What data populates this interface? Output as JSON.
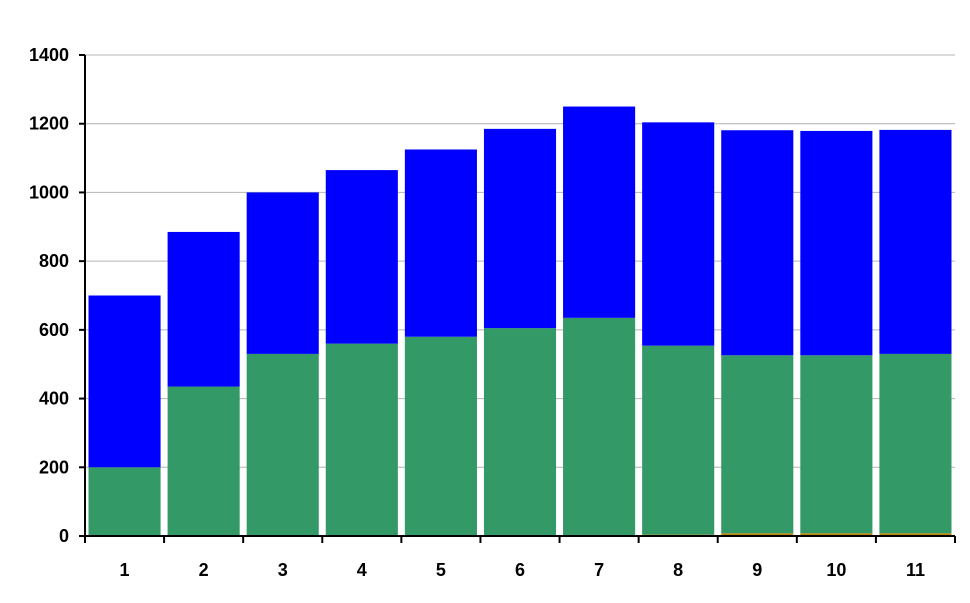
{
  "chart_data": {
    "type": "bar",
    "stacked": true,
    "title": "",
    "xlabel": "",
    "ylabel": "",
    "categories": [
      "1",
      "2",
      "3",
      "4",
      "5",
      "6",
      "7",
      "8",
      "9",
      "10",
      "11"
    ],
    "ylim": [
      0,
      1400
    ],
    "yticks": [
      0,
      200,
      400,
      600,
      800,
      1000,
      1200,
      1400
    ],
    "grid": true,
    "legend": "none",
    "series": [
      {
        "color": "#b8860b",
        "values": [
          0,
          0,
          0,
          0,
          0,
          3,
          3,
          4,
          8,
          8,
          8
        ]
      },
      {
        "color": "#339966",
        "values": [
          200,
          435,
          530,
          560,
          580,
          602,
          632,
          550,
          518,
          518,
          522
        ]
      },
      {
        "color": "#0000ff",
        "values": [
          500,
          450,
          470,
          505,
          545,
          580,
          615,
          650,
          655,
          653,
          652
        ]
      }
    ]
  }
}
